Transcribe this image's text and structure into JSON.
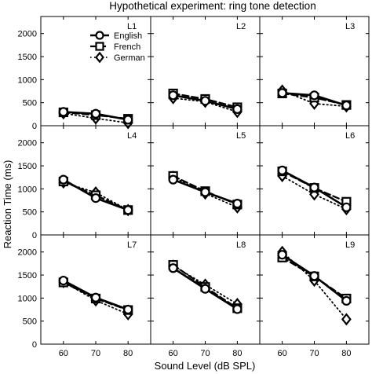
{
  "chart_data": {
    "type": "line",
    "title": "Hypothetical experiment: ring tone detection",
    "xlabel": "Sound Level (dB SPL)",
    "ylabel": "Reaction Time (ms)",
    "x": [
      60,
      70,
      80
    ],
    "x_ticks": [
      "60",
      "70",
      "80"
    ],
    "y_ticks": [
      "0",
      "500",
      "1000",
      "1500",
      "2000"
    ],
    "ylim": [
      0,
      2200
    ],
    "xlim": [
      53,
      87
    ],
    "grid": false,
    "legend": {
      "placement": "inside panel L2, top-left",
      "entries": [
        {
          "name": "English",
          "marker": "circle",
          "line": "solid"
        },
        {
          "name": "French",
          "marker": "square",
          "line": "dashed"
        },
        {
          "name": "German",
          "marker": "diamond",
          "line": "dotted"
        }
      ]
    },
    "panels": [
      {
        "label": "L1",
        "series": [
          {
            "name": "English",
            "values": [
              300,
              260,
              130
            ]
          },
          {
            "name": "French",
            "values": [
              290,
              230,
              150
            ]
          },
          {
            "name": "German",
            "values": [
              270,
              160,
              60
            ]
          }
        ]
      },
      {
        "label": "L2",
        "series": [
          {
            "name": "English",
            "values": [
              660,
              540,
              360
            ]
          },
          {
            "name": "French",
            "values": [
              700,
              580,
              400
            ]
          },
          {
            "name": "German",
            "values": [
              600,
              520,
              300
            ]
          }
        ]
      },
      {
        "label": "L3",
        "series": [
          {
            "name": "English",
            "values": [
              710,
              660,
              440
            ]
          },
          {
            "name": "French",
            "values": [
              700,
              610,
              450
            ]
          },
          {
            "name": "German",
            "values": [
              760,
              480,
              420
            ]
          }
        ]
      },
      {
        "label": "L4",
        "series": [
          {
            "name": "English",
            "values": [
              1200,
              800,
              540
            ]
          },
          {
            "name": "French",
            "values": [
              1160,
              860,
              540
            ]
          },
          {
            "name": "German",
            "values": [
              1140,
              920,
              540
            ]
          }
        ]
      },
      {
        "label": "L5",
        "series": [
          {
            "name": "English",
            "values": [
              1200,
              930,
              680
            ]
          },
          {
            "name": "French",
            "values": [
              1280,
              950,
              660
            ]
          },
          {
            "name": "German",
            "values": [
              1260,
              900,
              600
            ]
          }
        ]
      },
      {
        "label": "L6",
        "series": [
          {
            "name": "English",
            "values": [
              1400,
              1030,
              600
            ]
          },
          {
            "name": "French",
            "values": [
              1380,
              1020,
              720
            ]
          },
          {
            "name": "German",
            "values": [
              1280,
              880,
              560
            ]
          }
        ]
      },
      {
        "label": "L7",
        "series": [
          {
            "name": "English",
            "values": [
              1380,
              1010,
              750
            ]
          },
          {
            "name": "French",
            "values": [
              1340,
              990,
              740
            ]
          },
          {
            "name": "German",
            "values": [
              1350,
              950,
              650
            ]
          }
        ]
      },
      {
        "label": "L8",
        "series": [
          {
            "name": "English",
            "values": [
              1650,
              1200,
              760
            ]
          },
          {
            "name": "French",
            "values": [
              1720,
              1240,
              780
            ]
          },
          {
            "name": "German",
            "values": [
              1700,
              1290,
              870
            ]
          }
        ]
      },
      {
        "label": "L9",
        "series": [
          {
            "name": "English",
            "values": [
              1940,
              1480,
              940
            ]
          },
          {
            "name": "French",
            "values": [
              1880,
              1470,
              990
            ]
          },
          {
            "name": "German",
            "values": [
              2000,
              1380,
              540
            ]
          }
        ]
      }
    ]
  }
}
